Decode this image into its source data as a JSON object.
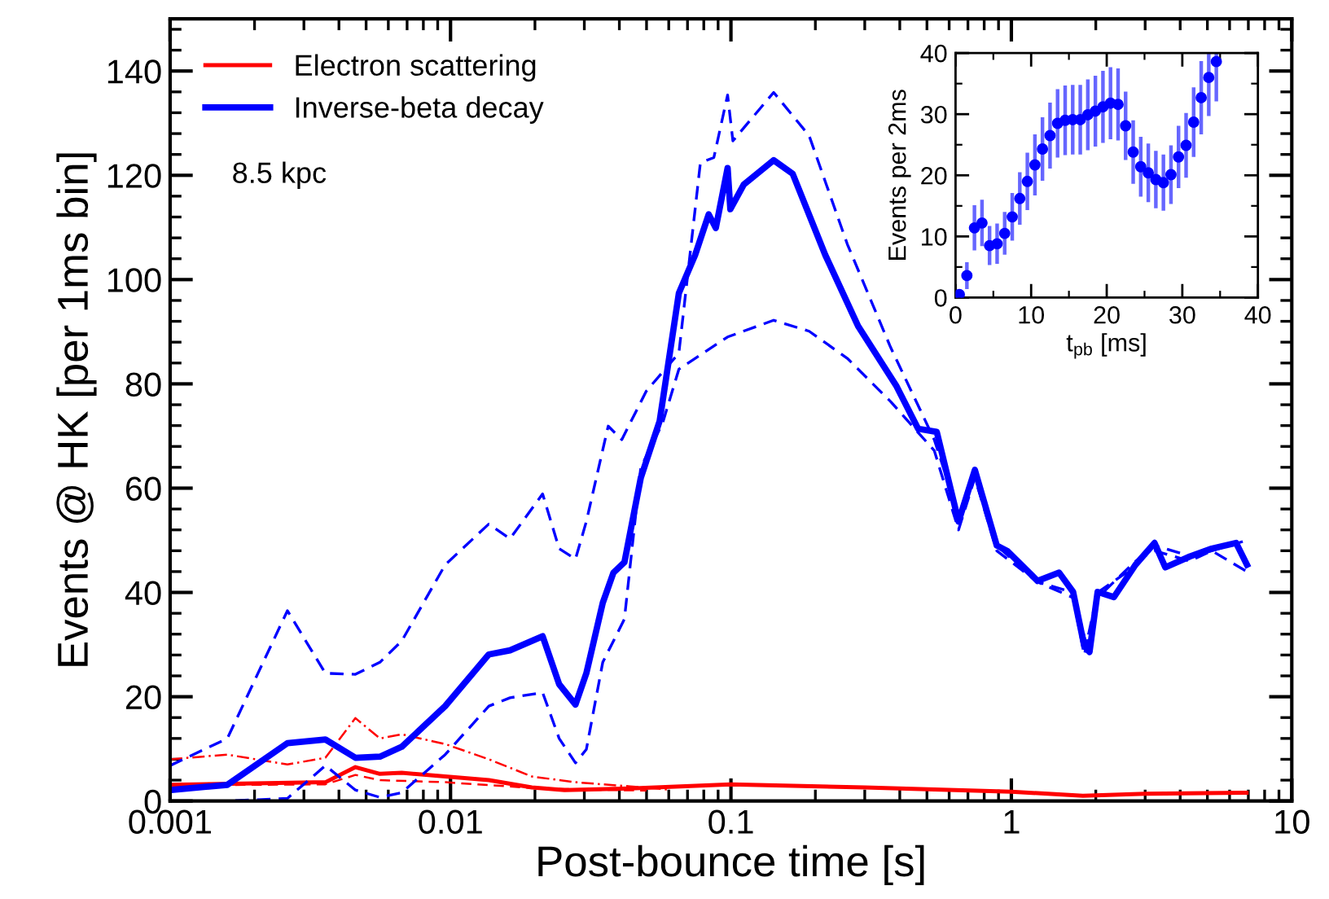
{
  "chart_data": [
    {
      "type": "line",
      "xlabel": "Post-bounce time [s]",
      "ylabel": "Events @ HK [per 1ms bin]",
      "log": "x",
      "xlim": [
        0.001,
        10
      ],
      "xticks": [
        0.001,
        0.01,
        0.1,
        1,
        10
      ],
      "ylim": [
        0,
        150
      ],
      "yticks": [
        0,
        20,
        40,
        60,
        80,
        100,
        120,
        140
      ],
      "grid": false,
      "legend": "top left",
      "annotations": [
        "8.5 kpc"
      ],
      "series": [
        {
          "name": "Electron scattering",
          "color": "#ff0000",
          "line_style": "solid",
          "x": [
            0.001,
            0.00358,
            0.00458,
            0.0056,
            0.0067,
            0.0137,
            0.0195,
            0.0255,
            0.0437,
            0.1,
            0.3,
            1,
            1.8,
            3,
            6.9
          ],
          "values": [
            3.1,
            3.6,
            6.5,
            5.2,
            5.4,
            4,
            2.6,
            2.1,
            2.4,
            3.2,
            2.6,
            1.8,
            1.0,
            1.4,
            1.6
          ]
        },
        {
          "color": "#ff0000",
          "line_style": "dashdot",
          "x": [
            0.001,
            0.0016,
            0.00262,
            0.00358,
            0.00458,
            0.0056,
            0.0067,
            0.0096,
            0.0137,
            0.0195,
            0.0279,
            0.0437,
            0.06
          ],
          "values": [
            8,
            8.9,
            7,
            8.3,
            15.9,
            12,
            12.8,
            10.9,
            8,
            4.7,
            3.6,
            2.8,
            2.2
          ]
        },
        {
          "color": "#ff0000",
          "line_style": "dashed",
          "x": [
            0.001,
            0.00358,
            0.00458,
            0.0056,
            0.0096,
            0.0195,
            0.03,
            0.05
          ],
          "values": [
            3,
            3.2,
            5,
            4,
            3.6,
            2.5,
            2.2,
            2
          ]
        },
        {
          "name": "Inverse-beta decay",
          "color": "#0000ff",
          "line_style": "solid",
          "x": [
            0.001,
            0.0016,
            0.00262,
            0.00358,
            0.00458,
            0.0056,
            0.0067,
            0.00957,
            0.01368,
            0.0163,
            0.0213,
            0.0244,
            0.0279,
            0.0305,
            0.0349,
            0.0381,
            0.0417,
            0.0477,
            0.0557,
            0.0652,
            0.0745,
            0.0833,
            0.0883,
            0.0973,
            0.0995,
            0.111,
            0.142,
            0.166,
            0.217,
            0.284,
            0.388,
            0.465,
            0.542,
            0.648,
            0.741,
            0.887,
            0.97,
            1.24,
            1.48,
            1.66,
            1.82,
            1.9,
            2.03,
            2.32,
            2.77,
            3.24,
            3.54,
            4.33,
            5.18,
            6.33,
            6.92
          ],
          "values": [
            2.1,
            3.1,
            11.1,
            11.8,
            8.3,
            8.5,
            10.4,
            18.2,
            28.1,
            28.9,
            31.6,
            22.4,
            18.5,
            24.5,
            38,
            43.8,
            45.8,
            62,
            72.9,
            97.4,
            104.7,
            112.5,
            109.9,
            121.4,
            113.5,
            118.2,
            122.9,
            120.3,
            104.7,
            91.1,
            79.7,
            71.4,
            70.8,
            53.6,
            63.5,
            49,
            47.9,
            42.2,
            43.8,
            40.1,
            29.7,
            28.6,
            40.1,
            39.1,
            45.3,
            49.5,
            44.8,
            46.9,
            48.4,
            49.5,
            45.3
          ]
        },
        {
          "color": "#0000ff",
          "line_style": "dashed",
          "x": [
            0.001,
            0.0016,
            0.00262,
            0.00358,
            0.00458,
            0.0056,
            0.0067,
            0.00957,
            0.01368,
            0.0163,
            0.0213,
            0.0244,
            0.0279,
            0.0305,
            0.0365,
            0.0408,
            0.0499,
            0.0652,
            0.0778,
            0.0869,
            0.0973,
            0.1016,
            0.142,
            0.19,
            0.26,
            0.371,
            0.531,
            0.648,
            0.741,
            0.887,
            1.24,
            1.66,
            1.85,
            2.03,
            2.77,
            3.24,
            4.33,
            5.18,
            6.92
          ],
          "values": [
            6.8,
            12,
            36.5,
            24.5,
            24.3,
            26.6,
            30.7,
            45.3,
            53.1,
            50.3,
            58.9,
            48.4,
            46.4,
            53.6,
            71.9,
            69.3,
            78.6,
            85.9,
            122.4,
            123.4,
            135.4,
            126.6,
            135.9,
            127.6,
            106.8,
            87,
            69.3,
            55,
            62,
            49,
            42,
            40,
            30,
            40,
            45,
            49,
            47,
            48,
            50
          ]
        },
        {
          "color": "#0000ff",
          "line_style": "dashed",
          "x": [
            0.001,
            0.0016,
            0.00262,
            0.00358,
            0.00458,
            0.0056,
            0.0067,
            0.00957,
            0.0137,
            0.0163,
            0.0213,
            0.0244,
            0.0279,
            0.0305,
            0.0349,
            0.0417,
            0.0477,
            0.057,
            0.0652,
            0.0973,
            0.142,
            0.19,
            0.26,
            0.371,
            0.531,
            0.648,
            0.741,
            0.887,
            1.24,
            1.66,
            1.82,
            2.03,
            2.77,
            3.24,
            4.33,
            5.18,
            6.92
          ],
          "values": [
            0,
            0,
            0.5,
            6.8,
            2.1,
            0.7,
            1.6,
            8.9,
            18.2,
            19.8,
            20.8,
            12,
            7.3,
            9.9,
            26.6,
            34.9,
            64,
            72.4,
            82.8,
            89,
            92.2,
            90.1,
            84.9,
            76.6,
            67.2,
            52,
            62,
            48,
            42,
            39,
            28,
            39,
            46,
            48,
            46,
            48,
            44
          ]
        }
      ]
    },
    {
      "type": "scatter",
      "xlabel": "t$_{pb}$ [ms]",
      "ylabel": "Events per 2ms",
      "xlim": [
        0,
        40
      ],
      "xticks": [
        0,
        10,
        20,
        30,
        40
      ],
      "ylim": [
        0,
        40
      ],
      "yticks": [
        0,
        10,
        20,
        30,
        40
      ],
      "grid": false,
      "marker": "circle",
      "series": [
        {
          "color": "#0000ff",
          "x": [
            0.5,
            1.5,
            2.5,
            3.5,
            4.5,
            5.5,
            6.5,
            7.5,
            8.5,
            9.5,
            10.5,
            11.5,
            12.5,
            13.5,
            14.5,
            15.5,
            16.5,
            17.5,
            18.5,
            19.5,
            20.5,
            21.5,
            22.5,
            23.5,
            24.5,
            25.5,
            26.5,
            27.5,
            28.5,
            29.5,
            30.5,
            31.5,
            32.5,
            33.5,
            34.5
          ],
          "values": [
            0.5,
            3.6,
            11.4,
            12.2,
            8.5,
            8.8,
            10.5,
            13.2,
            16.2,
            19,
            21.7,
            24.3,
            26.5,
            28.5,
            29,
            29.1,
            29.1,
            29.9,
            30.5,
            31.2,
            31.8,
            31.6,
            28.1,
            23.8,
            21.4,
            20.4,
            19.3,
            18.8,
            20.1,
            23,
            24.9,
            28.7,
            32.7,
            36,
            38.6
          ],
          "errors": [
            null,
            1.9,
            3.4,
            3.5,
            2.9,
            3,
            3.2,
            3.6,
            4,
            4.4,
            4.7,
            4.9,
            5.1,
            5.3,
            5.4,
            5.4,
            5.4,
            5.5,
            5.5,
            5.6,
            5.6,
            5.6,
            5.3,
            4.9,
            4.6,
            4.5,
            4.4,
            4.3,
            4.5,
            4.8,
            5,
            5.4,
            5.7,
            [
              30,
              40
            ],
            [
              32.4,
              40
            ]
          ]
        }
      ]
    }
  ]
}
